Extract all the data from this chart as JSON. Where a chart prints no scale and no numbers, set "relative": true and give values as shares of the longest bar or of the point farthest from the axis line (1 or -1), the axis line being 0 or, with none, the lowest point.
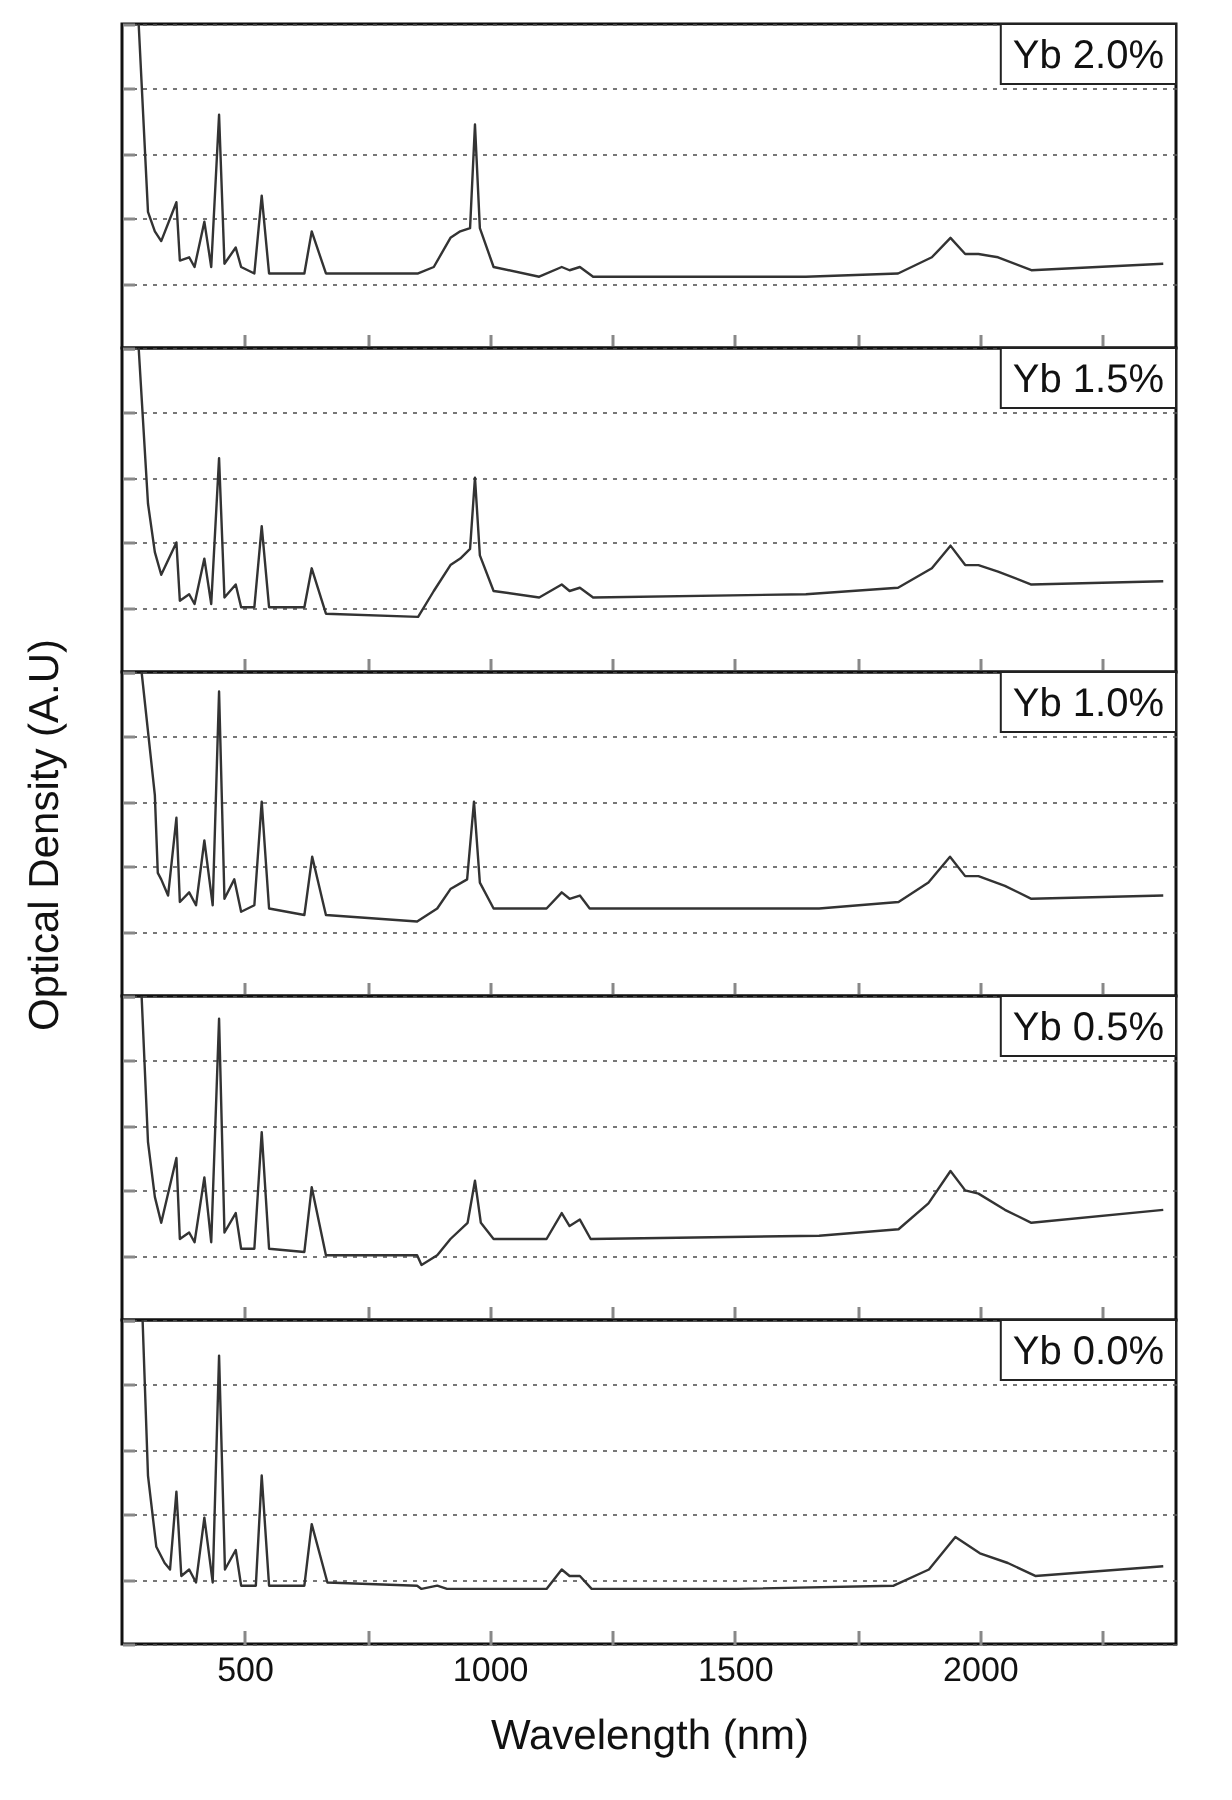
{
  "chart_data": [
    {
      "type": "line",
      "relative": true,
      "grid": "y",
      "legend": "top right",
      "tick_labels": false,
      "xlim": [
        250,
        2400
      ],
      "xticks": [
        {
          "value": 500,
          "label": null
        },
        {
          "value": 750,
          "label": null
        },
        {
          "value": 1000,
          "label": null
        },
        {
          "value": 1250,
          "label": null
        },
        {
          "value": 1500,
          "label": null
        },
        {
          "value": 1750,
          "label": null
        },
        {
          "value": 2000,
          "label": null
        },
        {
          "value": 2250,
          "label": null
        }
      ],
      "x": [
        284,
        303,
        317,
        330,
        361,
        368,
        387,
        398,
        418,
        432,
        448,
        459,
        482,
        493,
        520,
        535,
        550,
        622,
        637,
        666,
        854,
        886,
        920,
        940,
        960,
        970,
        980,
        1008,
        1101,
        1147,
        1163,
        1184,
        1211,
        1645,
        1833,
        1902,
        1940,
        1970,
        1997,
        2037,
        2105,
        2374
      ],
      "series": [
        {
          "name": "Yb 2.0%",
          "color": "#333333",
          "values": [
            1,
            0.42,
            0.36,
            0.33,
            0.45,
            0.27,
            0.28,
            0.25,
            0.39,
            0.25,
            0.72,
            0.26,
            0.31,
            0.25,
            0.23,
            0.47,
            0.23,
            0.23,
            0.36,
            0.23,
            0.23,
            0.25,
            0.34,
            0.36,
            0.37,
            0.69,
            0.37,
            0.25,
            0.22,
            0.25,
            0.24,
            0.25,
            0.22,
            0.22,
            0.23,
            0.28,
            0.34,
            0.29,
            0.29,
            0.28,
            0.24,
            0.26
          ]
        }
      ]
    },
    {
      "type": "line",
      "relative": true,
      "grid": "y",
      "legend": "top right",
      "tick_labels": false,
      "xlim": [
        250,
        2400
      ],
      "xticks": [
        {
          "value": 500,
          "label": null
        },
        {
          "value": 750,
          "label": null
        },
        {
          "value": 1000,
          "label": null
        },
        {
          "value": 1250,
          "label": null
        },
        {
          "value": 1500,
          "label": null
        },
        {
          "value": 1750,
          "label": null
        },
        {
          "value": 2000,
          "label": null
        },
        {
          "value": 2250,
          "label": null
        }
      ],
      "x": [
        284,
        303,
        317,
        330,
        361,
        368,
        387,
        398,
        418,
        432,
        448,
        459,
        482,
        493,
        520,
        535,
        550,
        622,
        637,
        666,
        854,
        886,
        920,
        940,
        960,
        970,
        980,
        1008,
        1101,
        1147,
        1163,
        1184,
        1211,
        1645,
        1833,
        1902,
        1940,
        1970,
        1997,
        2037,
        2105,
        2374
      ],
      "series": [
        {
          "name": "Yb 1.5%",
          "color": "#333333",
          "values": [
            1,
            0.52,
            0.37,
            0.3,
            0.4,
            0.22,
            0.24,
            0.21,
            0.35,
            0.21,
            0.66,
            0.23,
            0.27,
            0.2,
            0.2,
            0.45,
            0.2,
            0.2,
            0.32,
            0.18,
            0.17,
            0.25,
            0.33,
            0.35,
            0.38,
            0.6,
            0.36,
            0.25,
            0.23,
            0.27,
            0.25,
            0.26,
            0.23,
            0.24,
            0.26,
            0.32,
            0.39,
            0.33,
            0.33,
            0.31,
            0.27,
            0.28
          ]
        }
      ]
    },
    {
      "type": "line",
      "relative": true,
      "grid": "y",
      "legend": "top right",
      "tick_labels": false,
      "ylabel": "Optical Density (A.U)",
      "xlim": [
        250,
        2400
      ],
      "xticks": [
        {
          "value": 500,
          "label": null
        },
        {
          "value": 750,
          "label": null
        },
        {
          "value": 1000,
          "label": null
        },
        {
          "value": 1250,
          "label": null
        },
        {
          "value": 1500,
          "label": null
        },
        {
          "value": 1750,
          "label": null
        },
        {
          "value": 2000,
          "label": null
        },
        {
          "value": 2250,
          "label": null
        }
      ],
      "x": [
        290,
        317,
        323,
        330,
        344,
        361,
        368,
        387,
        401,
        418,
        435,
        448,
        459,
        479,
        493,
        520,
        535,
        550,
        622,
        638,
        666,
        852,
        893,
        920,
        954,
        968,
        980,
        1008,
        1116,
        1147,
        1163,
        1184,
        1204,
        1211,
        1672,
        1834,
        1895,
        1939,
        1970,
        1997,
        2051,
        2105,
        2374
      ],
      "series": [
        {
          "name": "Yb 1.0%",
          "color": "#333333",
          "values": [
            1,
            0.62,
            0.38,
            0.36,
            0.31,
            0.55,
            0.29,
            0.32,
            0.28,
            0.48,
            0.28,
            0.94,
            0.3,
            0.36,
            0.26,
            0.28,
            0.6,
            0.27,
            0.25,
            0.43,
            0.25,
            0.23,
            0.27,
            0.33,
            0.36,
            0.6,
            0.35,
            0.27,
            0.27,
            0.32,
            0.3,
            0.31,
            0.27,
            0.27,
            0.27,
            0.29,
            0.35,
            0.43,
            0.37,
            0.37,
            0.34,
            0.3,
            0.31
          ]
        }
      ]
    },
    {
      "type": "line",
      "relative": true,
      "grid": "y",
      "legend": "top right",
      "tick_labels": false,
      "xlim": [
        250,
        2400
      ],
      "xticks": [
        {
          "value": 500,
          "label": null
        },
        {
          "value": 750,
          "label": null
        },
        {
          "value": 1000,
          "label": null
        },
        {
          "value": 1250,
          "label": null
        },
        {
          "value": 1500,
          "label": null
        },
        {
          "value": 1750,
          "label": null
        },
        {
          "value": 2000,
          "label": null
        },
        {
          "value": 2250,
          "label": null
        }
      ],
      "x": [
        290,
        303,
        317,
        330,
        361,
        368,
        387,
        398,
        418,
        432,
        448,
        459,
        482,
        493,
        520,
        535,
        550,
        622,
        637,
        666,
        852,
        861,
        893,
        920,
        955,
        970,
        982,
        1008,
        1116,
        1147,
        1163,
        1184,
        1206,
        1672,
        1834,
        1895,
        1940,
        1970,
        1997,
        2051,
        2105,
        2374
      ],
      "series": [
        {
          "name": "Yb 0.5%",
          "color": "#333333",
          "values": [
            1,
            0.55,
            0.38,
            0.3,
            0.5,
            0.25,
            0.27,
            0.24,
            0.44,
            0.24,
            0.93,
            0.27,
            0.33,
            0.22,
            0.22,
            0.58,
            0.22,
            0.21,
            0.41,
            0.2,
            0.2,
            0.17,
            0.2,
            0.25,
            0.3,
            0.43,
            0.3,
            0.25,
            0.25,
            0.33,
            0.29,
            0.31,
            0.25,
            0.26,
            0.28,
            0.36,
            0.46,
            0.4,
            0.39,
            0.34,
            0.3,
            0.34
          ]
        }
      ]
    },
    {
      "type": "line",
      "relative": true,
      "grid": "y",
      "legend": "top right",
      "tick_labels": "x",
      "xlabel": "Wavelength (nm)",
      "xlim": [
        250,
        2400
      ],
      "xticks": [
        {
          "value": 500,
          "label": "500"
        },
        {
          "value": 750,
          "label": null
        },
        {
          "value": 1000,
          "label": "1000"
        },
        {
          "value": 1250,
          "label": null
        },
        {
          "value": 1500,
          "label": "1500"
        },
        {
          "value": 1750,
          "label": null
        },
        {
          "value": 2000,
          "label": "2000"
        },
        {
          "value": 2250,
          "label": null
        }
      ],
      "x": [
        292,
        303,
        320,
        337,
        348,
        361,
        371,
        387,
        401,
        418,
        435,
        448,
        460,
        482,
        493,
        523,
        535,
        550,
        622,
        637,
        669,
        852,
        861,
        893,
        913,
        1116,
        1147,
        1163,
        1184,
        1208,
        1504,
        1824,
        1896,
        1950,
        2000,
        2057,
        2113,
        2374
      ],
      "series": [
        {
          "name": "Yb 0.0%",
          "color": "#333333",
          "values": [
            1,
            0.52,
            0.3,
            0.25,
            0.23,
            0.47,
            0.21,
            0.23,
            0.19,
            0.39,
            0.19,
            0.89,
            0.23,
            0.29,
            0.18,
            0.18,
            0.52,
            0.18,
            0.18,
            0.37,
            0.19,
            0.18,
            0.17,
            0.18,
            0.17,
            0.17,
            0.23,
            0.21,
            0.21,
            0.17,
            0.17,
            0.18,
            0.23,
            0.33,
            0.28,
            0.25,
            0.21,
            0.24
          ]
        }
      ]
    }
  ]
}
